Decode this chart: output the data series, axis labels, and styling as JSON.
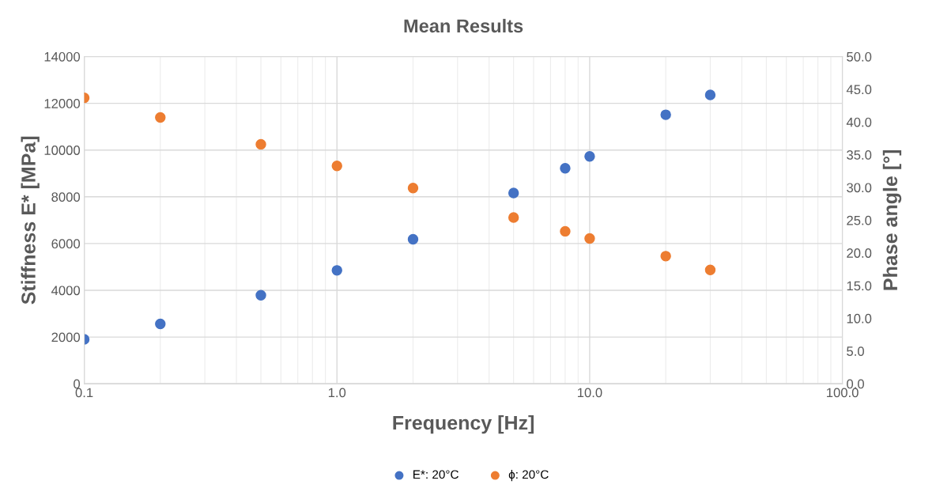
{
  "chart_data": {
    "type": "scatter",
    "title": "Mean Results",
    "xlabel": "Frequency [Hz]",
    "ylabel": "Stiffness E* [MPa]",
    "y2label": "Phase angle [°]",
    "x": [
      0.1,
      0.2,
      0.5,
      1,
      2,
      5,
      8,
      10,
      20,
      30
    ],
    "series": [
      {
        "name": "E*: 20°C",
        "color": "#4472c4",
        "values": [
          1900,
          2560,
          3790,
          4850,
          6180,
          8160,
          9220,
          9730,
          11510,
          12360
        ]
      },
      {
        "name": "ϕ: 20°C",
        "color": "#ed7d31",
        "axis": "y2",
        "values": [
          43.7,
          40.7,
          36.6,
          33.3,
          29.9,
          25.4,
          23.3,
          22.2,
          19.5,
          17.4
        ]
      }
    ],
    "log": "x",
    "xlim": [
      0.1,
      100
    ],
    "xticks": [
      {
        "value": 0.1,
        "label": "0.1"
      },
      {
        "value": 1,
        "label": "1.0"
      },
      {
        "value": 10,
        "label": "10.0"
      },
      {
        "value": 100,
        "label": "100.0"
      }
    ],
    "ylim": [
      0,
      14000
    ],
    "yticks": [
      0,
      2000,
      4000,
      6000,
      8000,
      10000,
      12000,
      14000
    ],
    "y2lim": [
      0,
      50
    ],
    "y2ticks": [
      {
        "value": 0,
        "label": "0.0"
      },
      {
        "value": 5,
        "label": "5.0"
      },
      {
        "value": 10,
        "label": "10.0"
      },
      {
        "value": 15,
        "label": "15.0"
      },
      {
        "value": 20,
        "label": "20.0"
      },
      {
        "value": 25,
        "label": "25.0"
      },
      {
        "value": 30,
        "label": "30.0"
      },
      {
        "value": 35,
        "label": "35.0"
      },
      {
        "value": 40,
        "label": "40.0"
      },
      {
        "value": 45,
        "label": "45.0"
      },
      {
        "value": 50,
        "label": "50.0"
      }
    ],
    "grid": true,
    "legend": "bottom",
    "marker": "circle"
  }
}
